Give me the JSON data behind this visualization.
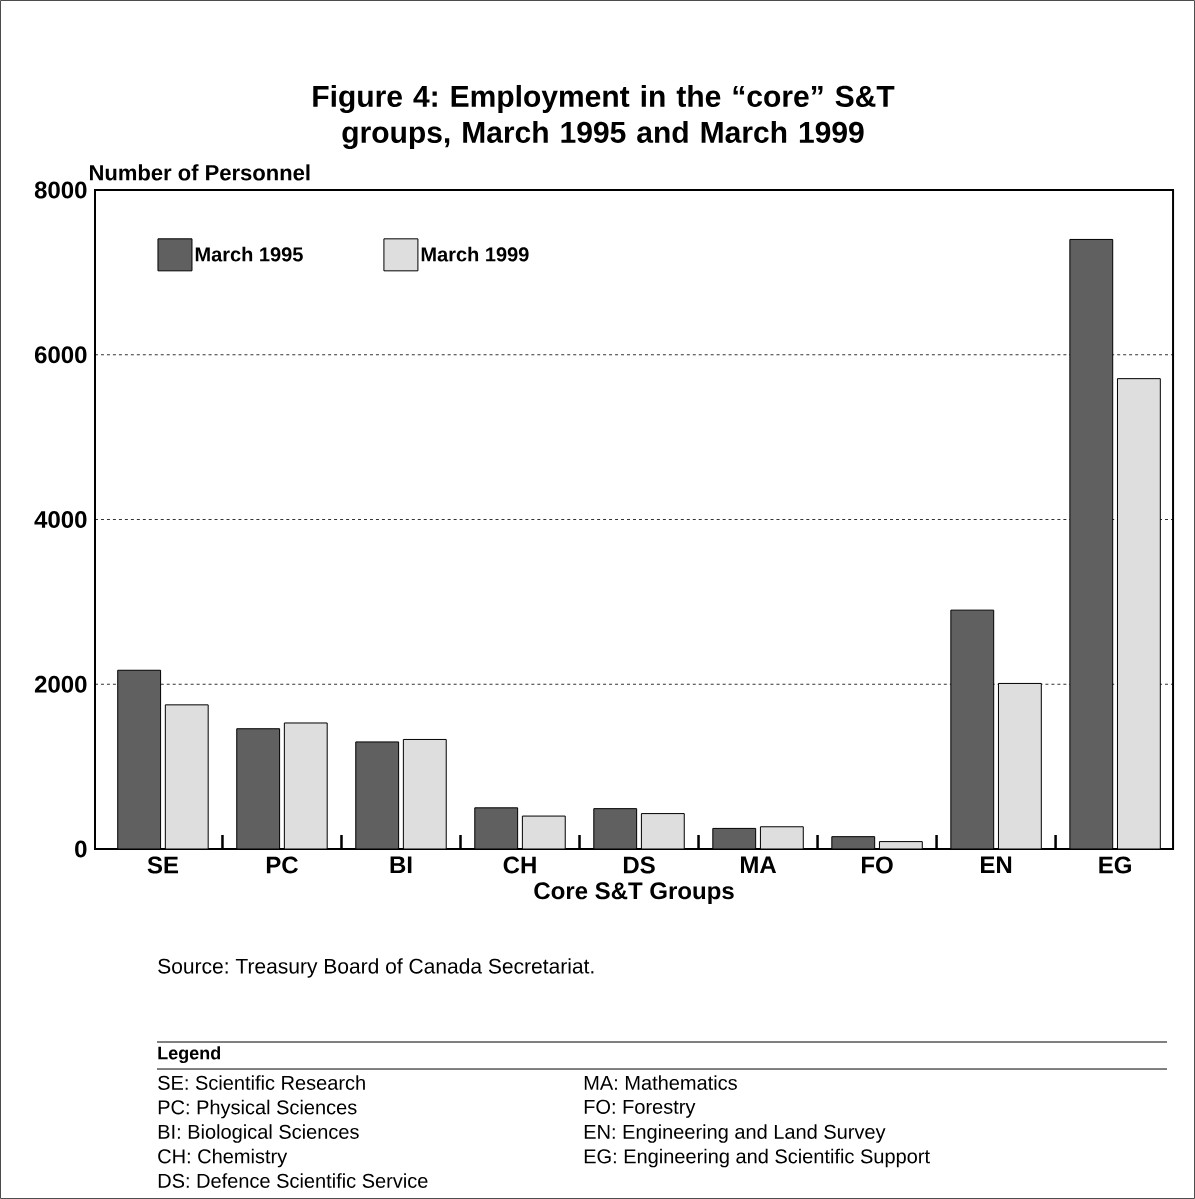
{
  "chart_data": {
    "type": "bar",
    "title": "Figure 4: Employment in the “core” S&T groups, March 1995 and March 1999",
    "xlabel": "Core S&T Groups",
    "ylabel": "Number of Personnel",
    "categories": [
      "SE",
      "PC",
      "BI",
      "CH",
      "DS",
      "MA",
      "FO",
      "EN",
      "EG"
    ],
    "series": [
      {
        "name": "March 1995",
        "color": "#606060",
        "values": [
          2170,
          1460,
          1300,
          500,
          490,
          250,
          150,
          2900,
          7400
        ]
      },
      {
        "name": "March 1999",
        "color": "#dedede",
        "values": [
          1750,
          1530,
          1330,
          400,
          430,
          270,
          90,
          2010,
          5710
        ]
      }
    ],
    "ylim": [
      0,
      8000
    ],
    "yticks": [
      0,
      2000,
      4000,
      6000,
      8000
    ],
    "grid": "y",
    "legend": "top left",
    "annotations": [
      "Source: Treasury Board of Canada Secretariat.",
      "Legend",
      "SE: Scientific Research",
      "PC: Physical Sciences",
      "BI: Biological Sciences",
      "CH: Chemistry",
      "DS: Defence Scientific Service",
      "MA: Mathematics",
      "FO: Forestry",
      "EN: Engineering and Land Survey",
      "EG: Engineering and Scientific Support"
    ]
  }
}
